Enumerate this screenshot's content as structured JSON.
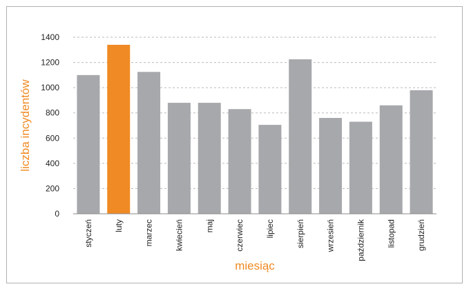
{
  "chart_data": {
    "type": "bar",
    "categories": [
      "styczeń",
      "luty",
      "marzec",
      "kwiecień",
      "maj",
      "czerwiec",
      "lipiec",
      "sierpień",
      "wrzesień",
      "październik",
      "listopad",
      "grudzień"
    ],
    "values": [
      1100,
      1340,
      1125,
      880,
      880,
      830,
      705,
      1225,
      760,
      730,
      860,
      980
    ],
    "highlight_index": 1,
    "colors": {
      "bar": "#a7a8ab",
      "highlight": "#f08a24",
      "grid": "#b9b9b9",
      "axis_title": "#f08a24"
    },
    "title": "",
    "xlabel": "miesiąc",
    "ylabel": "liczba incydentów",
    "ylim": [
      0,
      1400
    ],
    "yticks": [
      0,
      200,
      400,
      600,
      800,
      1000,
      1200,
      1400
    ],
    "grid": true,
    "legend": "none"
  }
}
